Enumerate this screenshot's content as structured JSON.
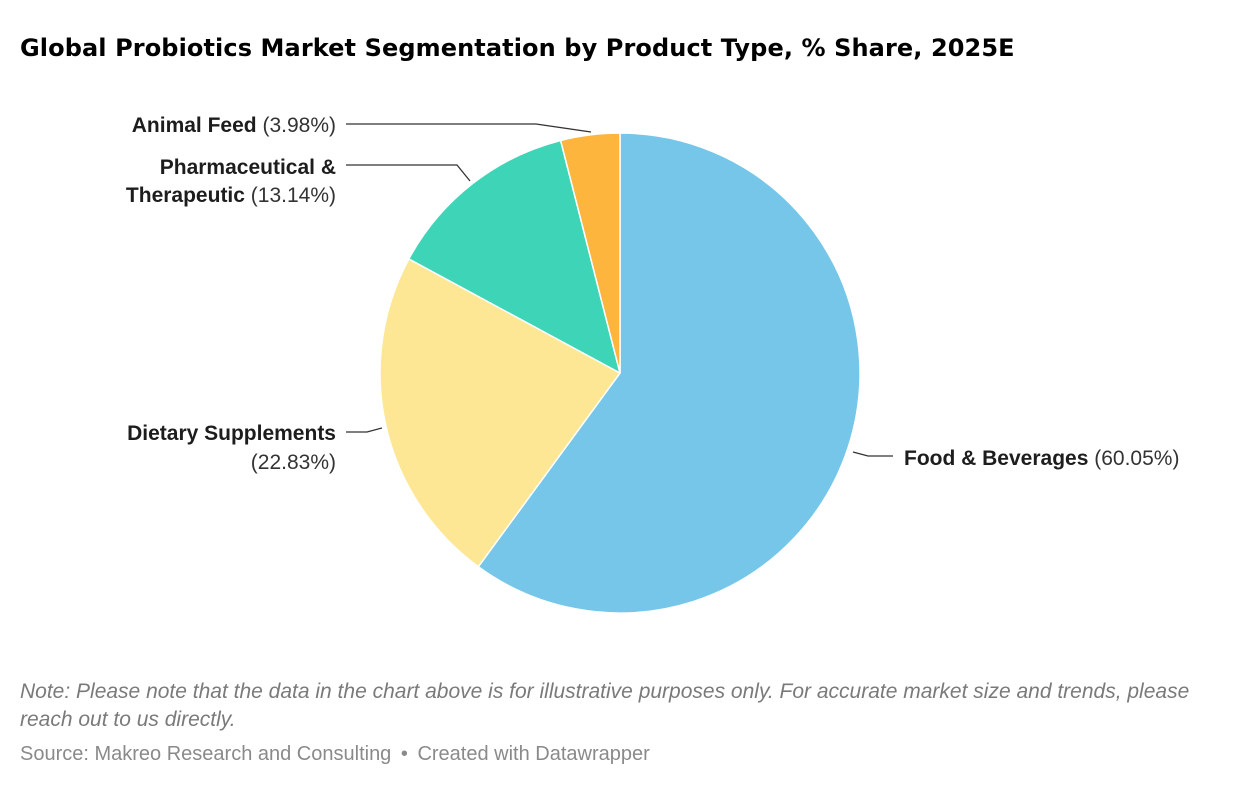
{
  "title": "Global Probiotics Market Segmentation by Product Type, % Share, 2025E",
  "chart_data": {
    "type": "pie",
    "title": "Global Probiotics Market Segmentation by Product Type, % Share, 2025E",
    "start_angle_deg": 0,
    "direction": "clockwise",
    "slices": [
      {
        "label": "Food & Beverages",
        "value": 60.05,
        "value_label": "(60.05%)",
        "color": "#76c6ea"
      },
      {
        "label": "Dietary Supplements",
        "value": 22.83,
        "value_label": "(22.83%)",
        "color": "#fde794"
      },
      {
        "label": "Pharmaceutical & Therapeutic",
        "label_lines": [
          "Pharmaceutical &",
          "Therapeutic"
        ],
        "value": 13.14,
        "value_label": "(13.14%)",
        "color": "#3dd4b8"
      },
      {
        "label": "Animal Feed",
        "value": 3.98,
        "value_label": "(3.98%)",
        "color": "#fdb53e"
      }
    ]
  },
  "footer": {
    "note": "Note: Please note that the data in the chart above is for illustrative purposes only. For accurate market size and trends, please reach out to us directly.",
    "source": "Source: Makreo Research and Consulting",
    "separator": "•",
    "credit": "Created with Datawrapper"
  }
}
